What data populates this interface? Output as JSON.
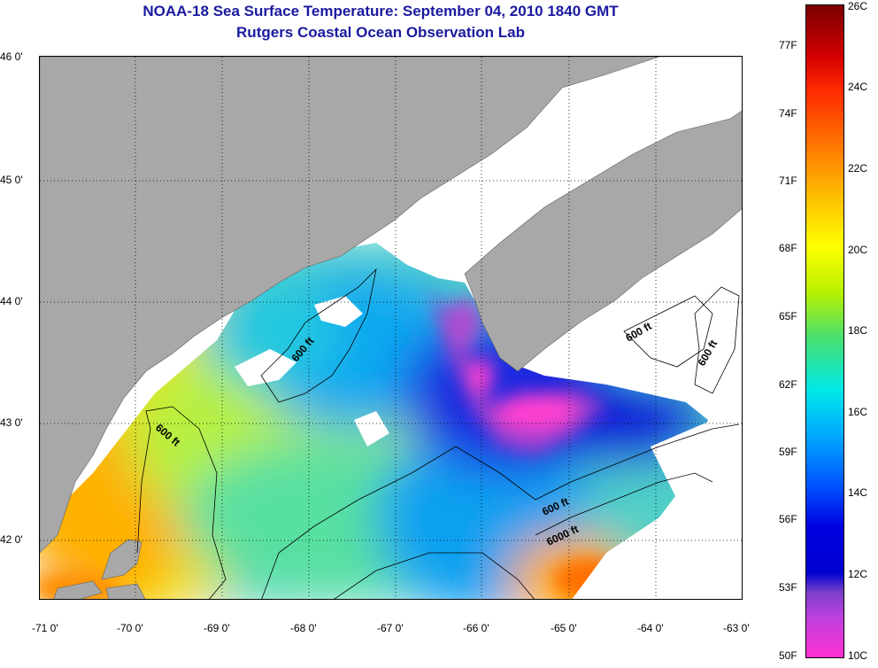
{
  "title": {
    "line1": "NOAA-18 Sea Surface Temperature:  September 04, 2010 1840 GMT",
    "line2": "Rutgers Coastal Ocean Observation Lab"
  },
  "map": {
    "lat_labels": [
      "46 0'",
      "45 0'",
      "44 0'",
      "43 0'",
      "42 0'"
    ],
    "lon_labels": [
      "-71 0'",
      "-70 0'",
      "-69 0'",
      "-68 0'",
      "-67 0'",
      "-66 0'",
      "-65 0'",
      "-64 0'",
      "-63 0'"
    ],
    "contour_labels": [
      "600 ft",
      "600 ft",
      "600 ft",
      "600 ft",
      "600 ft",
      "6000 ft"
    ],
    "colors": {
      "land": "#a8a8a8",
      "cloud": "#ffffff",
      "gridline": "#000000"
    }
  },
  "colorbar": {
    "celsius_labels": [
      "26C",
      "24C",
      "22C",
      "20C",
      "18C",
      "16C",
      "14C",
      "12C",
      "10C"
    ],
    "fahrenheit_labels": [
      "77F",
      "74F",
      "71F",
      "68F",
      "65F",
      "62F",
      "59F",
      "56F",
      "53F",
      "50F"
    ]
  }
}
